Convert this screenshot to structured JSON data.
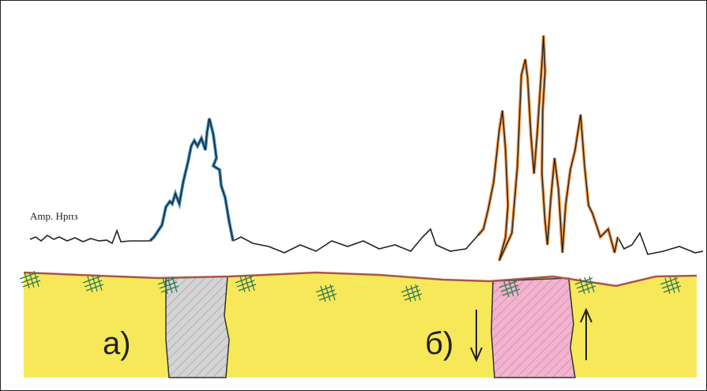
{
  "labels": {
    "amplitude": "Amp. Нрпз",
    "a": "а)",
    "b": "б)"
  }
}
